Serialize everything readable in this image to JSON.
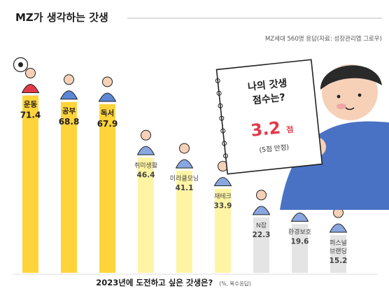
{
  "header": {
    "title": "MZ가 생각하는 갓생",
    "source": "MZ세대 560명 응답(자료: 성장관리앱 그로우)"
  },
  "card": {
    "line1": "나의 갓생",
    "line2": "점수는?",
    "score": "3.2",
    "score_unit": "점",
    "note": "(5점 만점)"
  },
  "colors": {
    "bar_strong": "#ffd43b",
    "bar_light": "#fff4a3",
    "bar_gray": "#e4e4e4",
    "score_red": "#e2394a",
    "character_blue": "#4a72c4"
  },
  "chart_data": {
    "type": "bar",
    "title": "2023년에 도전하고 싶은 갓생은?",
    "note": "(%, 복수응답)",
    "categories": [
      "운동",
      "공부",
      "독서",
      "취미생활",
      "미라클모닝",
      "재테크",
      "N잡",
      "환경보호",
      "퍼스널 브랜딩"
    ],
    "values": [
      71.4,
      68.8,
      67.9,
      46.4,
      41.1,
      33.9,
      22.3,
      19.6,
      15.2
    ],
    "value_labels": [
      "71.4",
      "68.8",
      "67.9",
      "46.4",
      "41.1",
      "33.9",
      "22.3",
      "19.6",
      "15.2"
    ],
    "icons": [
      "soccer-player-icon",
      "graduate-student-icon",
      "reading-person-icon",
      "painting-hobby-icon",
      "morning-yoga-icon",
      "piggy-bank-icon",
      "multi-job-icon",
      "environment-icon",
      "personal-branding-icon"
    ],
    "grid": false,
    "legend": "none"
  }
}
